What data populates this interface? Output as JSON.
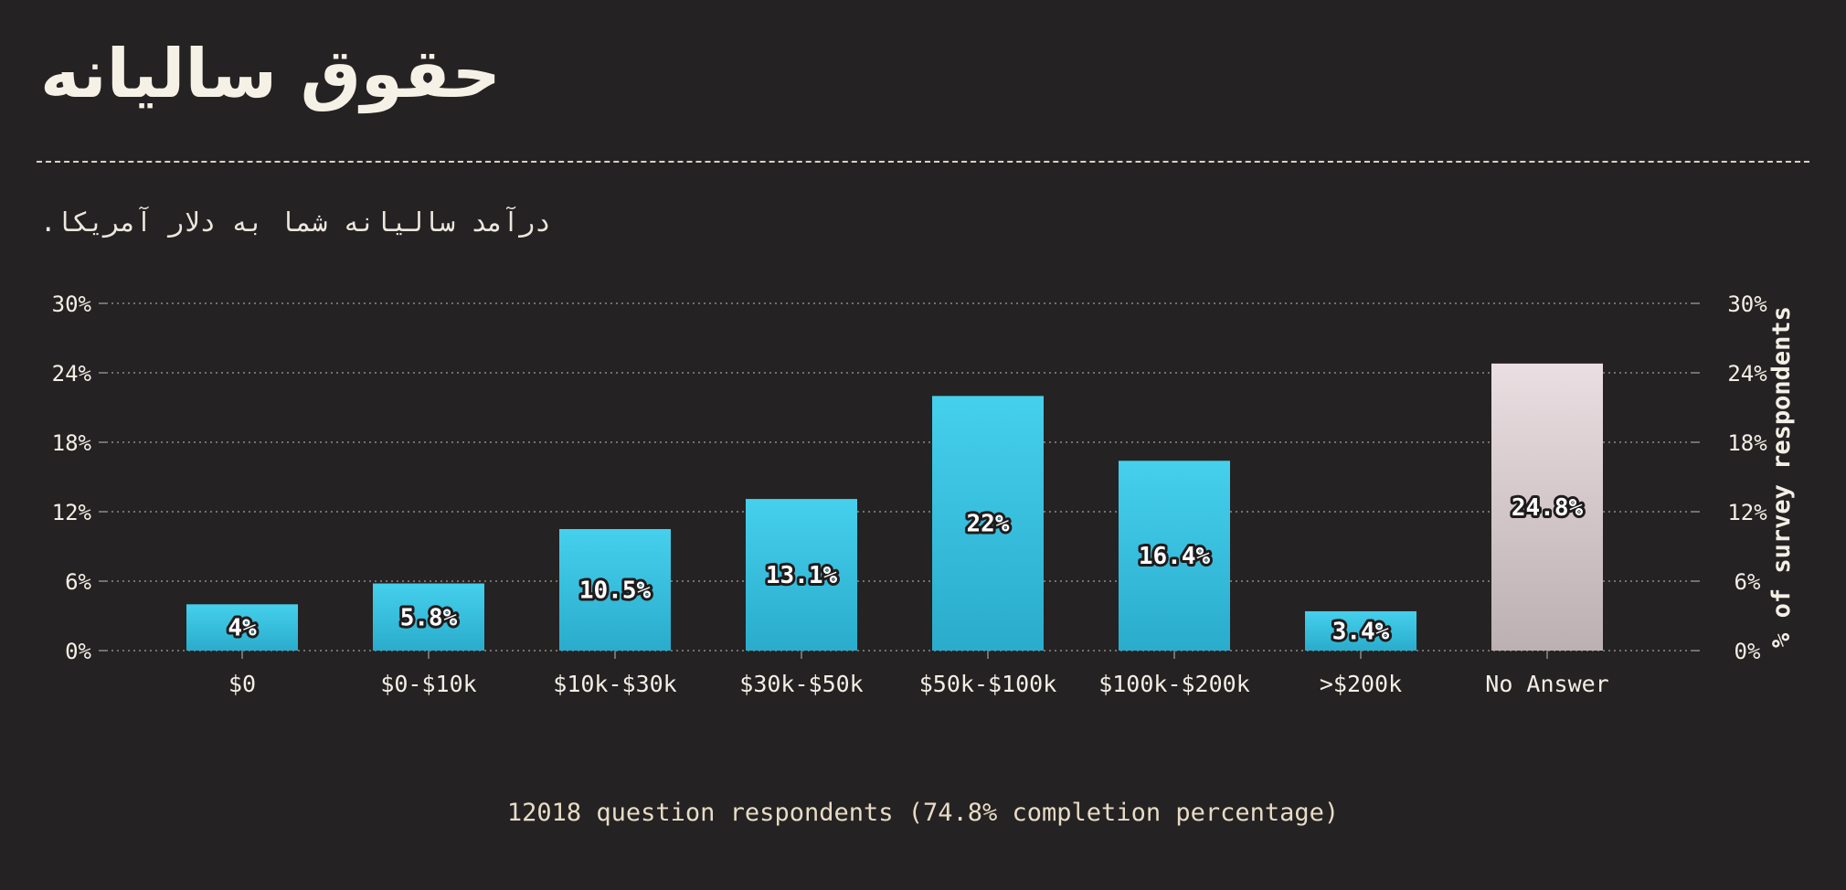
{
  "header": {
    "title": "حقوق سالیانه",
    "subtitle": "درآمد سالیانه شما به دلار آمریکا."
  },
  "footer": {
    "note": "12018 question respondents (74.8% completion percentage)"
  },
  "colors": {
    "background": "#252223",
    "bar_top": "#45d0ec",
    "bar_bottom": "#2aaccc",
    "no_answer_top": "#ebdee2",
    "no_answer_bottom": "#bcb0b2",
    "grid": "#8f8a86",
    "text": "#f3efe6"
  },
  "chart_data": {
    "type": "bar",
    "categories": [
      "$0",
      "$0-$10k",
      "$10k-$30k",
      "$30k-$50k",
      "$50k-$100k",
      "$100k-$200k",
      ">$200k",
      "No Answer"
    ],
    "values": [
      4,
      5.8,
      10.5,
      13.1,
      22,
      16.4,
      3.4,
      24.8
    ],
    "data_labels": [
      "4%",
      "5.8%",
      "10.5%",
      "13.1%",
      "22%",
      "16.4%",
      "3.4%",
      "24.8%"
    ],
    "highlight_category": "No Answer",
    "ylim": [
      0,
      30
    ],
    "yticks": [
      0,
      6,
      12,
      18,
      24,
      30
    ],
    "ytick_labels": [
      "0%",
      "6%",
      "12%",
      "18%",
      "24%",
      "30%"
    ],
    "y2label": "% of survey respondents",
    "grid": true,
    "dual_y_axis": true
  }
}
